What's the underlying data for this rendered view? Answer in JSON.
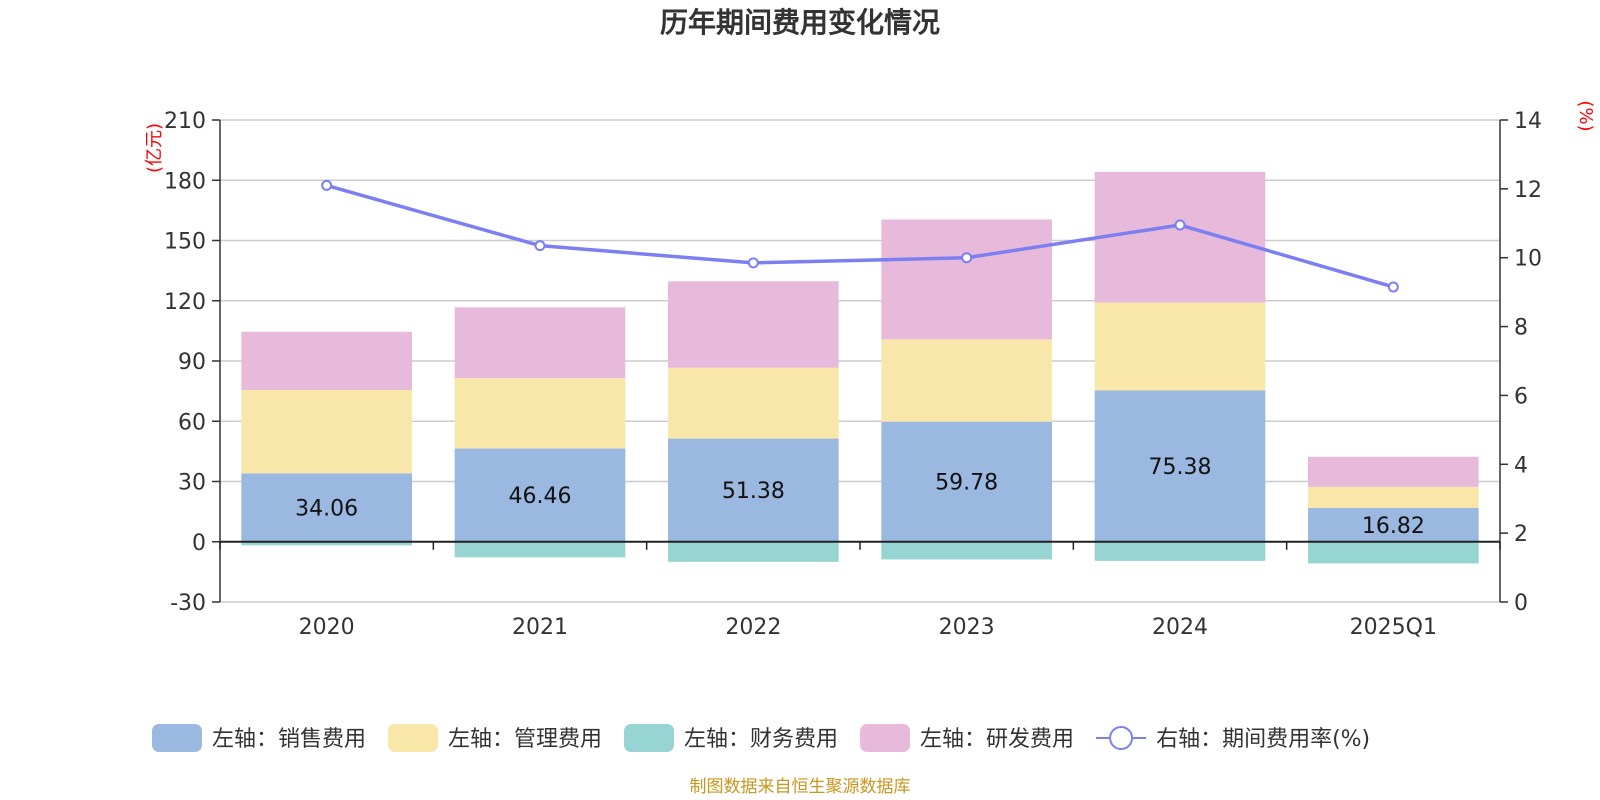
{
  "chart_data": {
    "type": "bar",
    "title": "历年期间费用变化情况",
    "categories": [
      "2020",
      "2021",
      "2022",
      "2023",
      "2024",
      "2025Q1"
    ],
    "left_axis": {
      "unit": "(亿元)",
      "ylim": [
        -30,
        210
      ],
      "ticks": [
        -30,
        0,
        30,
        60,
        90,
        120,
        150,
        180,
        210
      ]
    },
    "right_axis": {
      "unit": "(%)",
      "ylim": [
        0,
        14
      ],
      "ticks": [
        0,
        2,
        4,
        6,
        8,
        10,
        12,
        14
      ]
    },
    "stacked": true,
    "series": [
      {
        "name": "左轴：销售费用",
        "color": "#9bb8e1",
        "values": [
          34.06,
          46.46,
          51.38,
          59.78,
          75.38,
          16.82
        ],
        "show_labels": true
      },
      {
        "name": "左轴：管理费用",
        "color": "#f8e7a9",
        "values": [
          41.5,
          35.0,
          35.3,
          41.0,
          43.8,
          10.5
        ]
      },
      {
        "name": "左轴：财务费用",
        "color": "#97d4d4",
        "values": [
          -1.8,
          -7.8,
          -10.0,
          -8.8,
          -9.5,
          -10.8
        ]
      },
      {
        "name": "左轴：研发费用",
        "color": "#e7b9da",
        "values": [
          29.0,
          35.3,
          43.0,
          59.7,
          65.0,
          15.0
        ]
      }
    ],
    "line_series": {
      "name": "右轴：期间费用率(%)",
      "color": "#7b7ff0",
      "axis": "right",
      "values": [
        12.1,
        10.35,
        9.85,
        10.0,
        10.95,
        9.15
      ]
    },
    "grid": true,
    "legend_position": "bottom"
  },
  "footer": {
    "source": "制图数据来自恒生聚源数据库"
  }
}
